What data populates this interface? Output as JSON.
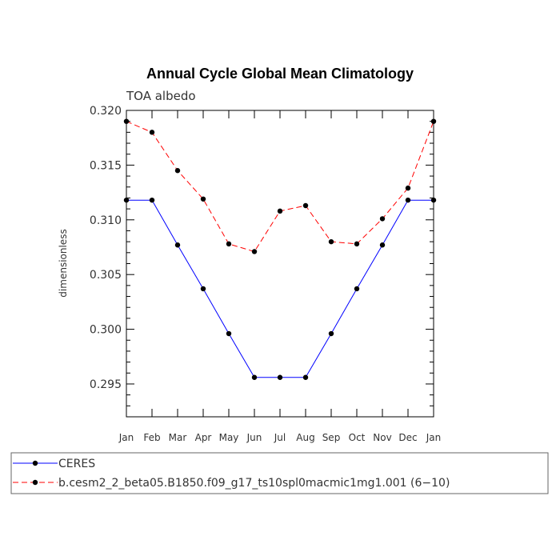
{
  "chart_data": {
    "type": "line",
    "title": "Annual Cycle Global Mean Climatology",
    "subtitle": "TOA albedo",
    "xlabel": "",
    "ylabel": "dimensionless",
    "categories": [
      "Jan",
      "Feb",
      "Mar",
      "Apr",
      "May",
      "Jun",
      "Jul",
      "Aug",
      "Sep",
      "Oct",
      "Nov",
      "Dec",
      "Jan"
    ],
    "ylim": [
      0.292,
      0.32
    ],
    "yticks": [
      0.295,
      0.3,
      0.305,
      0.31,
      0.315,
      0.32
    ],
    "ytick_labels": [
      "0.295",
      "0.300",
      "0.305",
      "0.310",
      "0.315",
      "0.320"
    ],
    "series": [
      {
        "name": "CERES",
        "color": "#0000ff",
        "dash": "solid",
        "values": [
          0.3118,
          0.3118,
          0.3077,
          0.3037,
          0.2996,
          0.2956,
          0.2956,
          0.2956,
          0.2996,
          0.3037,
          0.3077,
          0.3118,
          0.3118
        ]
      },
      {
        "name": "b.cesm2_2_beta05.B1850.f09_g17_ts10spl0macmic1mg1.001 (6−10)",
        "color": "#ff0000",
        "dash": "dashed",
        "values": [
          0.319,
          0.318,
          0.3145,
          0.3119,
          0.3078,
          0.3071,
          0.3108,
          0.3113,
          0.308,
          0.3078,
          0.3101,
          0.3129,
          0.319
        ]
      }
    ],
    "legend_position": "bottom",
    "grid": false
  }
}
